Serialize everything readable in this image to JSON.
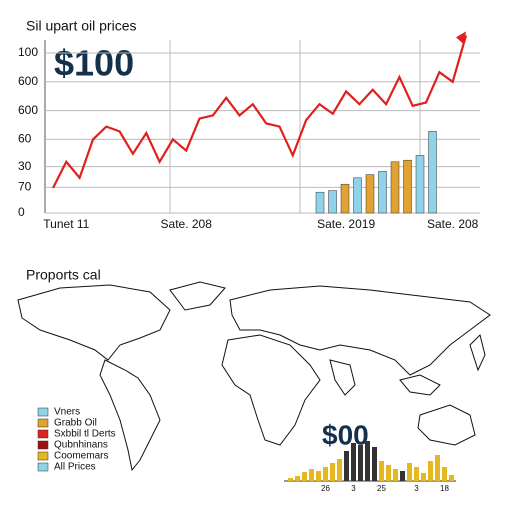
{
  "chart_data": [
    {
      "type": "line",
      "title": "Sil upart oil prices",
      "annotation": "$100",
      "color": "#e0201c",
      "categories": [
        null,
        "Tunet 11",
        null,
        null,
        null,
        null,
        null,
        null,
        null,
        null,
        "Sate. 208",
        null,
        null,
        null,
        null,
        null,
        null,
        null,
        null,
        null,
        null,
        null,
        "Sate. 2019",
        null,
        null,
        null,
        null,
        null,
        null,
        null,
        "Sate. 208",
        null
      ],
      "values": [
        15.6,
        32,
        22,
        46,
        54,
        51,
        37,
        50,
        32,
        46,
        39,
        59,
        61,
        72,
        61,
        68,
        56,
        54,
        36,
        58,
        68,
        62,
        76,
        68,
        77,
        68,
        85,
        67,
        69,
        88,
        82,
        111
      ],
      "ylim": [
        0,
        115
      ],
      "yticks": [
        0,
        {
          "value": 16,
          "label": "70"
        },
        {
          "value": 29,
          "label": "30"
        },
        {
          "value": 46,
          "label": "60"
        },
        {
          "value": 64,
          "label": "600"
        },
        {
          "value": 82,
          "label": "600"
        },
        100
      ],
      "grid": true,
      "bars": {
        "values": [
          13,
          14,
          18,
          22,
          24,
          26,
          32,
          33,
          36,
          51
        ],
        "colors": [
          "#8fd3ea",
          "#8fd3ea",
          "#e2a233",
          "#8fd3ea",
          "#e2a233",
          "#8fd3ea",
          "#e2a233",
          "#e2a233",
          "#8fd3ea",
          "#8fd3ea"
        ]
      }
    },
    {
      "type": "bar",
      "title": "Proports cal",
      "annotation": "$00",
      "categories": [
        null,
        null,
        null,
        null,
        null,
        "26",
        null,
        null,
        null,
        "3",
        null,
        null,
        null,
        "25",
        null,
        null,
        null,
        null,
        "3",
        null,
        null,
        null,
        "18",
        null
      ],
      "values": [
        3,
        5,
        9,
        12,
        10,
        14,
        18,
        22,
        30,
        38,
        36,
        40,
        34,
        20,
        16,
        12,
        10,
        18,
        14,
        8,
        20,
        26,
        14,
        6
      ],
      "colors": [
        "#e5b820",
        "#e5b820",
        "#e5b820",
        "#e5b820",
        "#e5b820",
        "#e5b820",
        "#e5b820",
        "#e5b820",
        "#333333",
        "#333333",
        "#333333",
        "#333333",
        "#333333",
        "#e5b820",
        "#e5b820",
        "#e5b820",
        "#333333",
        "#e5b820",
        "#e5b820",
        "#e5b820",
        "#e5b820",
        "#e5b820",
        "#e5b820",
        "#e5b820"
      ],
      "legend": [
        {
          "name": "Vners",
          "color": "#8fd3ea"
        },
        {
          "name": "Grabb Oil",
          "color": "#e2a233"
        },
        {
          "name": "Sxbbil tl Derts",
          "color": "#e0201c"
        },
        {
          "name": "Qubnhinans",
          "color": "#a01010"
        },
        {
          "name": "Coomemars",
          "color": "#e5b820"
        },
        {
          "name": "All Prices",
          "color": "#8fd3ea"
        }
      ]
    }
  ]
}
